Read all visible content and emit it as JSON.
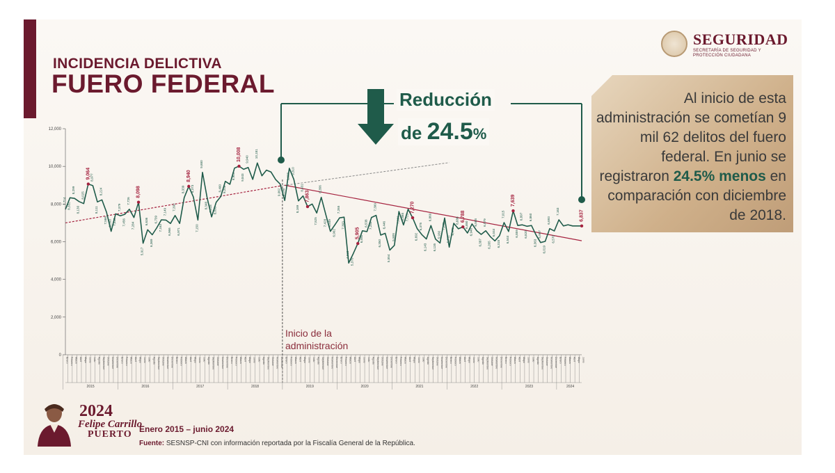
{
  "header": {
    "title_small": "INCIDENCIA DELICTIVA",
    "title_big": "FUERO FEDERAL"
  },
  "logo": {
    "name": "SEGURIDAD",
    "subtitle": "SECRETARÍA DE SEGURIDAD Y PROTECCIÓN CIUDADANA"
  },
  "callout": {
    "line1": "Reducción",
    "line2_prefix": "de ",
    "line2_value": "24.5",
    "line2_suffix": "%"
  },
  "info": {
    "part1": "Al inicio de esta administración se cometían 9 mil 62 delitos del fuero federal. En junio se registraron ",
    "highlight": "24.5% menos",
    "part2": " en comparación con diciembre de 2018."
  },
  "annotation": {
    "inicio_line1": "Inicio de la",
    "inicio_line2": "administración"
  },
  "footer": {
    "year": "2024",
    "person": "Felipe Carrillo",
    "city": "PUERTO",
    "period": "Enero 2015 – junio 2024",
    "source_label": "Fuente:",
    "source_text": " SESNSP-CNI con información reportada por la Fiscalía General de la República."
  },
  "chart_data": {
    "type": "line",
    "ylim": [
      0,
      12000
    ],
    "yticks": [
      "0",
      "2,000",
      "4,000",
      "6,000",
      "8,000",
      "10,000",
      "12,000"
    ],
    "ytick_values": [
      0,
      2000,
      4000,
      6000,
      8000,
      10000,
      12000
    ],
    "years": [
      "2015",
      "2016",
      "2017",
      "2018",
      "2019",
      "2020",
      "2021",
      "2022",
      "2023",
      "2024"
    ],
    "months": [
      "Enero",
      "Febrero",
      "Marzo",
      "Abril",
      "Mayo",
      "Junio",
      "Julio",
      "Agosto",
      "Septiembre",
      "Octubre",
      "Noviembre",
      "Diciembre"
    ],
    "admin_start_index": 48,
    "series": [
      {
        "values": [
          7714,
          8332,
          8299,
          8130,
          8025,
          9064,
          8977,
          8111,
          8224,
          7566,
          6550,
          7480,
          7379,
          7456,
          7726,
          7284,
          8098,
          5917,
          6636,
          6369,
          6739,
          7163,
          7149,
          6966,
          7392,
          6971,
          8339,
          8940,
          8373,
          7150,
          9680,
          8348,
          7318,
          8093,
          8400,
          9206,
          9050,
          9905,
          10008,
          9843,
          9940,
          9309,
          10181,
          9500,
          9800,
          9700,
          9300,
          9062,
          8190,
          9898,
          9310,
          8169,
          8431,
          7863,
          8000,
          7525,
          8356,
          7428,
          6549,
          6902,
          7265,
          7303,
          4868,
          5370,
          5905,
          6580,
          6538,
          7288,
          7399,
          6350,
          6446,
          5554,
          5808,
          7601,
          6888,
          7723,
          7270,
          6692,
          6375,
          6143,
          6860,
          6135,
          5930,
          7258,
          5711,
          6978,
          6686,
          6788,
          6460,
          6946,
          6588,
          6387,
          6579,
          6265,
          6044,
          6318,
          7015,
          6544,
          7639,
          6859,
          6897,
          6820,
          6860,
          6363,
          5957,
          6019,
          6693,
          6570,
          7163,
          6837,
          6900,
          6837,
          6837,
          6837
        ],
        "color": "#1f5b4a"
      }
    ],
    "highlighted_labels": [
      {
        "index": 5,
        "text": "9,064"
      },
      {
        "index": 16,
        "text": "8,098"
      },
      {
        "index": 27,
        "text": "8,940"
      },
      {
        "index": 38,
        "text": "10,008"
      },
      {
        "index": 53,
        "text": "7,863"
      },
      {
        "index": 64,
        "text": "5,905"
      },
      {
        "index": 76,
        "text": "7,270"
      },
      {
        "index": 87,
        "text": "6,788"
      },
      {
        "index": 98,
        "text": "7,639"
      },
      {
        "index": 113,
        "text": "6,837"
      }
    ],
    "point_labels": [
      {
        "index": 0,
        "text": "7,714"
      },
      {
        "index": 1,
        "text": "8,332"
      },
      {
        "index": 2,
        "text": "8,299"
      },
      {
        "index": 3,
        "text": "8,130"
      },
      {
        "index": 4,
        "text": "8,025"
      },
      {
        "index": 6,
        "text": "8,977"
      },
      {
        "index": 7,
        "text": "8,111"
      },
      {
        "index": 8,
        "text": "8,224"
      },
      {
        "index": 9,
        "text": "7,566"
      },
      {
        "index": 10,
        "text": "6,550"
      },
      {
        "index": 11,
        "text": "7,480"
      },
      {
        "index": 12,
        "text": "7,379"
      },
      {
        "index": 13,
        "text": "7,456"
      },
      {
        "index": 14,
        "text": "7,726"
      },
      {
        "index": 15,
        "text": "7,284"
      },
      {
        "index": 17,
        "text": "5,917"
      },
      {
        "index": 18,
        "text": "6,636"
      },
      {
        "index": 19,
        "text": "6,369"
      },
      {
        "index": 20,
        "text": "6,739"
      },
      {
        "index": 21,
        "text": "7,163"
      },
      {
        "index": 22,
        "text": "7,149"
      },
      {
        "index": 23,
        "text": "6,966"
      },
      {
        "index": 24,
        "text": "7,392"
      },
      {
        "index": 25,
        "text": "6,971"
      },
      {
        "index": 26,
        "text": "8,339"
      },
      {
        "index": 28,
        "text": "8,373"
      },
      {
        "index": 29,
        "text": "7,150"
      },
      {
        "index": 30,
        "text": "9,680"
      },
      {
        "index": 31,
        "text": "8,348"
      },
      {
        "index": 32,
        "text": "7,318"
      },
      {
        "index": 33,
        "text": "8,093"
      },
      {
        "index": 34,
        "text": "8,400"
      },
      {
        "index": 35,
        "text": "9,206"
      },
      {
        "index": 37,
        "text": "9,905"
      },
      {
        "index": 39,
        "text": "9,843"
      },
      {
        "index": 40,
        "text": "9,940"
      },
      {
        "index": 42,
        "text": "10,181"
      },
      {
        "index": 47,
        "text": "9,062"
      },
      {
        "index": 48,
        "text": "8,190"
      },
      {
        "index": 49,
        "text": "9,898"
      },
      {
        "index": 50,
        "text": "9,310"
      },
      {
        "index": 51,
        "text": "8,169"
      },
      {
        "index": 52,
        "text": "8,431"
      },
      {
        "index": 55,
        "text": "7,525"
      },
      {
        "index": 56,
        "text": "8,356"
      },
      {
        "index": 57,
        "text": "7,428"
      },
      {
        "index": 58,
        "text": "6,549"
      },
      {
        "index": 59,
        "text": "6,902"
      },
      {
        "index": 60,
        "text": "7,265"
      },
      {
        "index": 61,
        "text": "7,303"
      },
      {
        "index": 62,
        "text": "4,868"
      },
      {
        "index": 63,
        "text": "5,370"
      },
      {
        "index": 65,
        "text": "6,580"
      },
      {
        "index": 66,
        "text": "6,538"
      },
      {
        "index": 67,
        "text": "7,288"
      },
      {
        "index": 68,
        "text": "7,399"
      },
      {
        "index": 69,
        "text": "6,350"
      },
      {
        "index": 70,
        "text": "6,446"
      },
      {
        "index": 71,
        "text": "5,554"
      },
      {
        "index": 72,
        "text": "5,808"
      },
      {
        "index": 73,
        "text": "7,601"
      },
      {
        "index": 74,
        "text": "6,888"
      },
      {
        "index": 75,
        "text": "7,723"
      },
      {
        "index": 77,
        "text": "6,692"
      },
      {
        "index": 78,
        "text": "6,375"
      },
      {
        "index": 79,
        "text": "6,143"
      },
      {
        "index": 80,
        "text": "6,860"
      },
      {
        "index": 81,
        "text": "6,135"
      },
      {
        "index": 82,
        "text": "5,930"
      },
      {
        "index": 83,
        "text": "7,258"
      },
      {
        "index": 84,
        "text": "5,711"
      },
      {
        "index": 85,
        "text": "6,978"
      },
      {
        "index": 86,
        "text": "6,686"
      },
      {
        "index": 88,
        "text": "6,460"
      },
      {
        "index": 89,
        "text": "6,946"
      },
      {
        "index": 90,
        "text": "6,588"
      },
      {
        "index": 91,
        "text": "6,387"
      },
      {
        "index": 92,
        "text": "6,579"
      },
      {
        "index": 93,
        "text": "6,265"
      },
      {
        "index": 94,
        "text": "6,044"
      },
      {
        "index": 95,
        "text": "6,318"
      },
      {
        "index": 96,
        "text": "7,015"
      },
      {
        "index": 97,
        "text": "6,544"
      },
      {
        "index": 99,
        "text": "6,859"
      },
      {
        "index": 100,
        "text": "6,897"
      },
      {
        "index": 101,
        "text": "6,820"
      },
      {
        "index": 102,
        "text": "6,860"
      },
      {
        "index": 103,
        "text": "6,363"
      },
      {
        "index": 104,
        "text": "5,957"
      },
      {
        "index": 105,
        "text": "6,019"
      },
      {
        "index": 106,
        "text": "6,693"
      },
      {
        "index": 107,
        "text": "6,570"
      },
      {
        "index": 108,
        "text": "7,163"
      }
    ],
    "trend_before": {
      "from": [
        0,
        7000
      ],
      "to": [
        47,
        8960
      ],
      "extend_to": [
        84,
        10200
      ],
      "color": "#a5223f"
    },
    "trend_after": {
      "from": [
        48,
        9000
      ],
      "to": [
        113,
        6050
      ],
      "color": "#a5223f"
    },
    "colors": {
      "line": "#1f5b4a",
      "trend": "#a5223f",
      "highlight": "#a5223f",
      "label": "#1f5b4a"
    }
  }
}
